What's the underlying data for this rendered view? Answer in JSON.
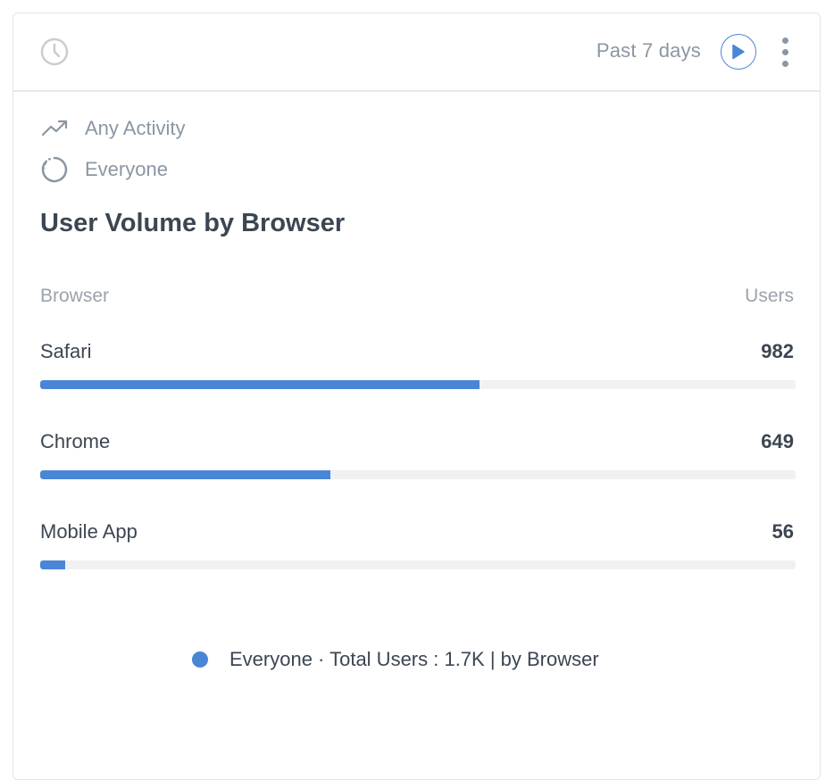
{
  "header": {
    "range_label": "Past 7 days",
    "icons": {
      "history": "clock-icon",
      "run": "play-icon",
      "menu": "more-vertical-icon"
    }
  },
  "filters": [
    {
      "icon": "trending-up-icon",
      "label": "Any Activity"
    },
    {
      "icon": "segment-circle-icon",
      "label": "Everyone"
    }
  ],
  "colors": {
    "accent": "#4a86d6",
    "track": "#f0f1f3",
    "text": "#3c4652",
    "muted": "#8b96a3"
  },
  "chart_data": {
    "type": "bar",
    "orientation": "horizontal",
    "title": "User Volume by Browser",
    "xlabel": "Browser",
    "ylabel": "Users",
    "categories": [
      "Safari",
      "Chrome",
      "Mobile App"
    ],
    "values": [
      982,
      649,
      56
    ],
    "value_labels": [
      "982",
      "649",
      "56"
    ],
    "xlim": [
      0,
      1687
    ],
    "series": [
      {
        "name": "Everyone",
        "values": [
          982,
          649,
          56
        ]
      }
    ],
    "legend": {
      "position": "bottom-center",
      "text": "Everyone · Total Users : 1.7K | by Browser"
    },
    "grid": false
  }
}
